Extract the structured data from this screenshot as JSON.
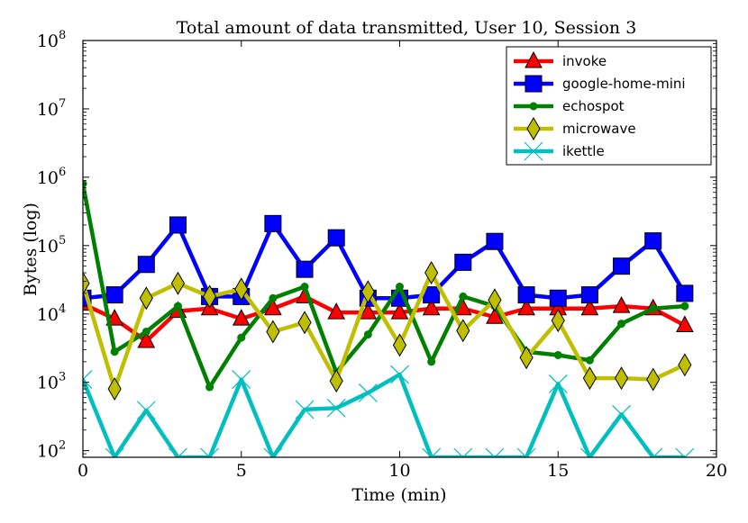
{
  "chart_data": {
    "type": "line",
    "title": "Total amount of data transmitted, User 10, Session 3",
    "xlabel": "Time (min)",
    "ylabel": "Bytes (log)",
    "xlim": [
      0,
      20
    ],
    "ylim": [
      80,
      100000000
    ],
    "yscale": "log",
    "grid": false,
    "legend_position": "top-right",
    "x_ticks": [
      "0",
      "5",
      "10",
      "15",
      "20"
    ],
    "y_ticks": [
      {
        "base": "10",
        "exp": "2",
        "value": 100
      },
      {
        "base": "10",
        "exp": "3",
        "value": 1000
      },
      {
        "base": "10",
        "exp": "4",
        "value": 10000
      },
      {
        "base": "10",
        "exp": "5",
        "value": 100000
      },
      {
        "base": "10",
        "exp": "6",
        "value": 1000000
      },
      {
        "base": "10",
        "exp": "7",
        "value": 10000000
      },
      {
        "base": "10",
        "exp": "8",
        "value": 100000000
      }
    ],
    "x": [
      0,
      1,
      2,
      3,
      4,
      5,
      6,
      7,
      8,
      9,
      10,
      11,
      12,
      13,
      14,
      15,
      16,
      17,
      18,
      19
    ],
    "series": [
      {
        "name": "invoke",
        "color": "#ff0000",
        "marker": "triangle",
        "values": [
          14000,
          8500,
          4000,
          11000,
          12000,
          8500,
          12000,
          18000,
          10500,
          10500,
          10500,
          12000,
          12000,
          9000,
          12000,
          12000,
          12000,
          13000,
          12000,
          6800
        ]
      },
      {
        "name": "google-home-mini",
        "color": "#0000ff",
        "marker": "square",
        "values": [
          17000,
          19000,
          53000,
          200000,
          18000,
          18000,
          210000,
          45000,
          130000,
          17000,
          17000,
          19000,
          57000,
          115000,
          19000,
          17000,
          19000,
          50000,
          117000,
          20000
        ]
      },
      {
        "name": "echospot",
        "color": "#008000",
        "marker": "circle",
        "values": [
          800000,
          2800,
          5500,
          13000,
          850,
          4500,
          17000,
          25000,
          1400,
          5000,
          25000,
          2000,
          18000,
          13000,
          2800,
          2500,
          2100,
          7200,
          12000,
          13000
        ]
      },
      {
        "name": "microwave",
        "color": "#bfbf00",
        "marker": "diamond",
        "values": [
          28000,
          800,
          17000,
          28000,
          18000,
          23000,
          5500,
          7500,
          1050,
          21000,
          3500,
          40000,
          5700,
          16000,
          2300,
          8000,
          1150,
          1150,
          1100,
          1800
        ]
      },
      {
        "name": "ikettle",
        "color": "#00bfbf",
        "marker": "x",
        "values": [
          1100,
          80,
          390,
          80,
          80,
          1100,
          80,
          400,
          420,
          700,
          1300,
          80,
          80,
          80,
          80,
          950,
          80,
          340,
          80,
          80
        ]
      }
    ]
  }
}
